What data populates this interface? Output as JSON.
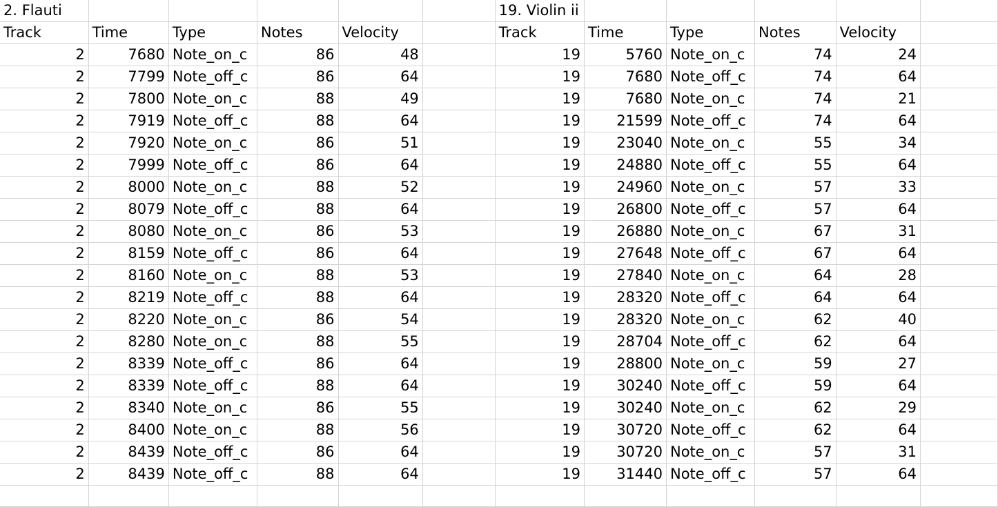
{
  "left_table": {
    "title": "2. Flauti",
    "headers": [
      "Track",
      "Time",
      "Type",
      "Notes",
      "Velocity"
    ],
    "rows": [
      [
        "2",
        "7680",
        "Note_on_c",
        "86",
        "48"
      ],
      [
        "2",
        "7799",
        "Note_off_c",
        "86",
        "64"
      ],
      [
        "2",
        "7800",
        "Note_on_c",
        "88",
        "49"
      ],
      [
        "2",
        "7919",
        "Note_off_c",
        "88",
        "64"
      ],
      [
        "2",
        "7920",
        "Note_on_c",
        "86",
        "51"
      ],
      [
        "2",
        "7999",
        "Note_off_c",
        "86",
        "64"
      ],
      [
        "2",
        "8000",
        "Note_on_c",
        "88",
        "52"
      ],
      [
        "2",
        "8079",
        "Note_off_c",
        "88",
        "64"
      ],
      [
        "2",
        "8080",
        "Note_on_c",
        "86",
        "53"
      ],
      [
        "2",
        "8159",
        "Note_off_c",
        "86",
        "64"
      ],
      [
        "2",
        "8160",
        "Note_on_c",
        "88",
        "53"
      ],
      [
        "2",
        "8219",
        "Note_off_c",
        "88",
        "64"
      ],
      [
        "2",
        "8220",
        "Note_on_c",
        "86",
        "54"
      ],
      [
        "2",
        "8280",
        "Note_on_c",
        "88",
        "55"
      ],
      [
        "2",
        "8339",
        "Note_off_c",
        "86",
        "64"
      ],
      [
        "2",
        "8339",
        "Note_off_c",
        "88",
        "64"
      ],
      [
        "2",
        "8340",
        "Note_on_c",
        "86",
        "55"
      ],
      [
        "2",
        "8400",
        "Note_on_c",
        "88",
        "56"
      ],
      [
        "2",
        "8439",
        "Note_off_c",
        "86",
        "64"
      ],
      [
        "2",
        "8439",
        "Note_off_c",
        "88",
        "64"
      ]
    ]
  },
  "right_table": {
    "title": "19. Violin ii",
    "headers": [
      "Track",
      "Time",
      "Type",
      "Notes",
      "Velocity"
    ],
    "rows": [
      [
        "19",
        "5760",
        "Note_on_c",
        "74",
        "24"
      ],
      [
        "19",
        "7680",
        "Note_off_c",
        "74",
        "64"
      ],
      [
        "19",
        "7680",
        "Note_on_c",
        "74",
        "21"
      ],
      [
        "19",
        "21599",
        "Note_off_c",
        "74",
        "64"
      ],
      [
        "19",
        "23040",
        "Note_on_c",
        "55",
        "34"
      ],
      [
        "19",
        "24880",
        "Note_off_c",
        "55",
        "64"
      ],
      [
        "19",
        "24960",
        "Note_on_c",
        "57",
        "33"
      ],
      [
        "19",
        "26800",
        "Note_off_c",
        "57",
        "64"
      ],
      [
        "19",
        "26880",
        "Note_on_c",
        "67",
        "31"
      ],
      [
        "19",
        "27648",
        "Note_off_c",
        "67",
        "64"
      ],
      [
        "19",
        "27840",
        "Note_on_c",
        "64",
        "28"
      ],
      [
        "19",
        "28320",
        "Note_off_c",
        "64",
        "64"
      ],
      [
        "19",
        "28320",
        "Note_on_c",
        "62",
        "40"
      ],
      [
        "19",
        "28704",
        "Note_off_c",
        "62",
        "64"
      ],
      [
        "19",
        "28800",
        "Note_on_c",
        "59",
        "27"
      ],
      [
        "19",
        "30240",
        "Note_off_c",
        "59",
        "64"
      ],
      [
        "19",
        "30240",
        "Note_on_c",
        "62",
        "29"
      ],
      [
        "19",
        "30720",
        "Note_off_c",
        "62",
        "64"
      ],
      [
        "19",
        "30720",
        "Note_on_c",
        "57",
        "31"
      ],
      [
        "19",
        "31440",
        "Note_off_c",
        "57",
        "64"
      ]
    ]
  }
}
